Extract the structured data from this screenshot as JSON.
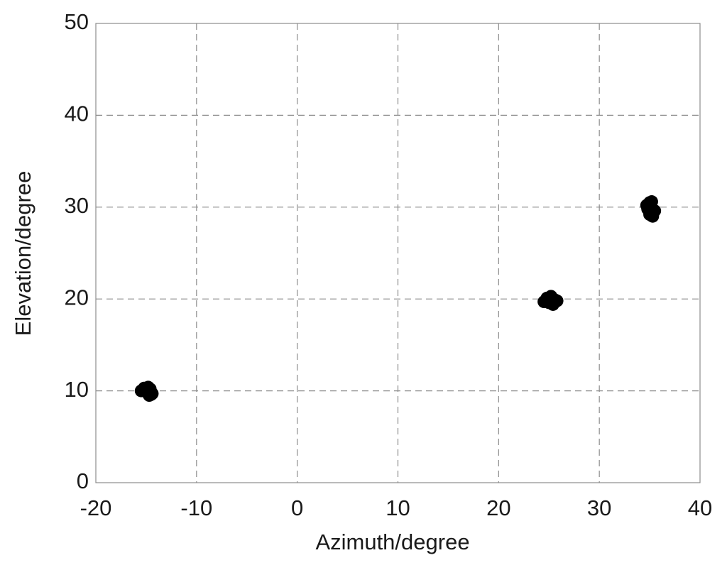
{
  "chart_data": {
    "type": "scatter",
    "x_label": "Azimuth/degree",
    "y_label": "Elevation/degree",
    "x": [
      -15.5,
      -15.2,
      -14.8,
      -14.6,
      -14.5,
      -14.9,
      -15.1,
      -14.7,
      -14.4,
      24.5,
      24.8,
      25.2,
      25.6,
      25.4,
      25.0,
      24.9,
      25.3,
      25.8,
      34.7,
      35.0,
      35.2,
      34.8,
      35.1,
      35.3,
      35.5,
      34.9,
      35.0
    ],
    "values": [
      10.0,
      10.3,
      10.4,
      10.2,
      9.6,
      9.8,
      10.1,
      9.5,
      9.7,
      19.7,
      20.1,
      20.3,
      19.9,
      19.4,
      19.6,
      19.8,
      20.0,
      19.8,
      30.2,
      30.5,
      30.6,
      29.8,
      29.4,
      29.0,
      29.6,
      30.0,
      29.2
    ],
    "color": "#000000",
    "xlim": [
      -20,
      40
    ],
    "xticks": [
      -20,
      -10,
      0,
      10,
      20,
      30,
      40
    ],
    "ylim": [
      0,
      50
    ],
    "yticks": [
      0,
      10,
      20,
      30,
      40,
      50
    ],
    "grid": true
  }
}
